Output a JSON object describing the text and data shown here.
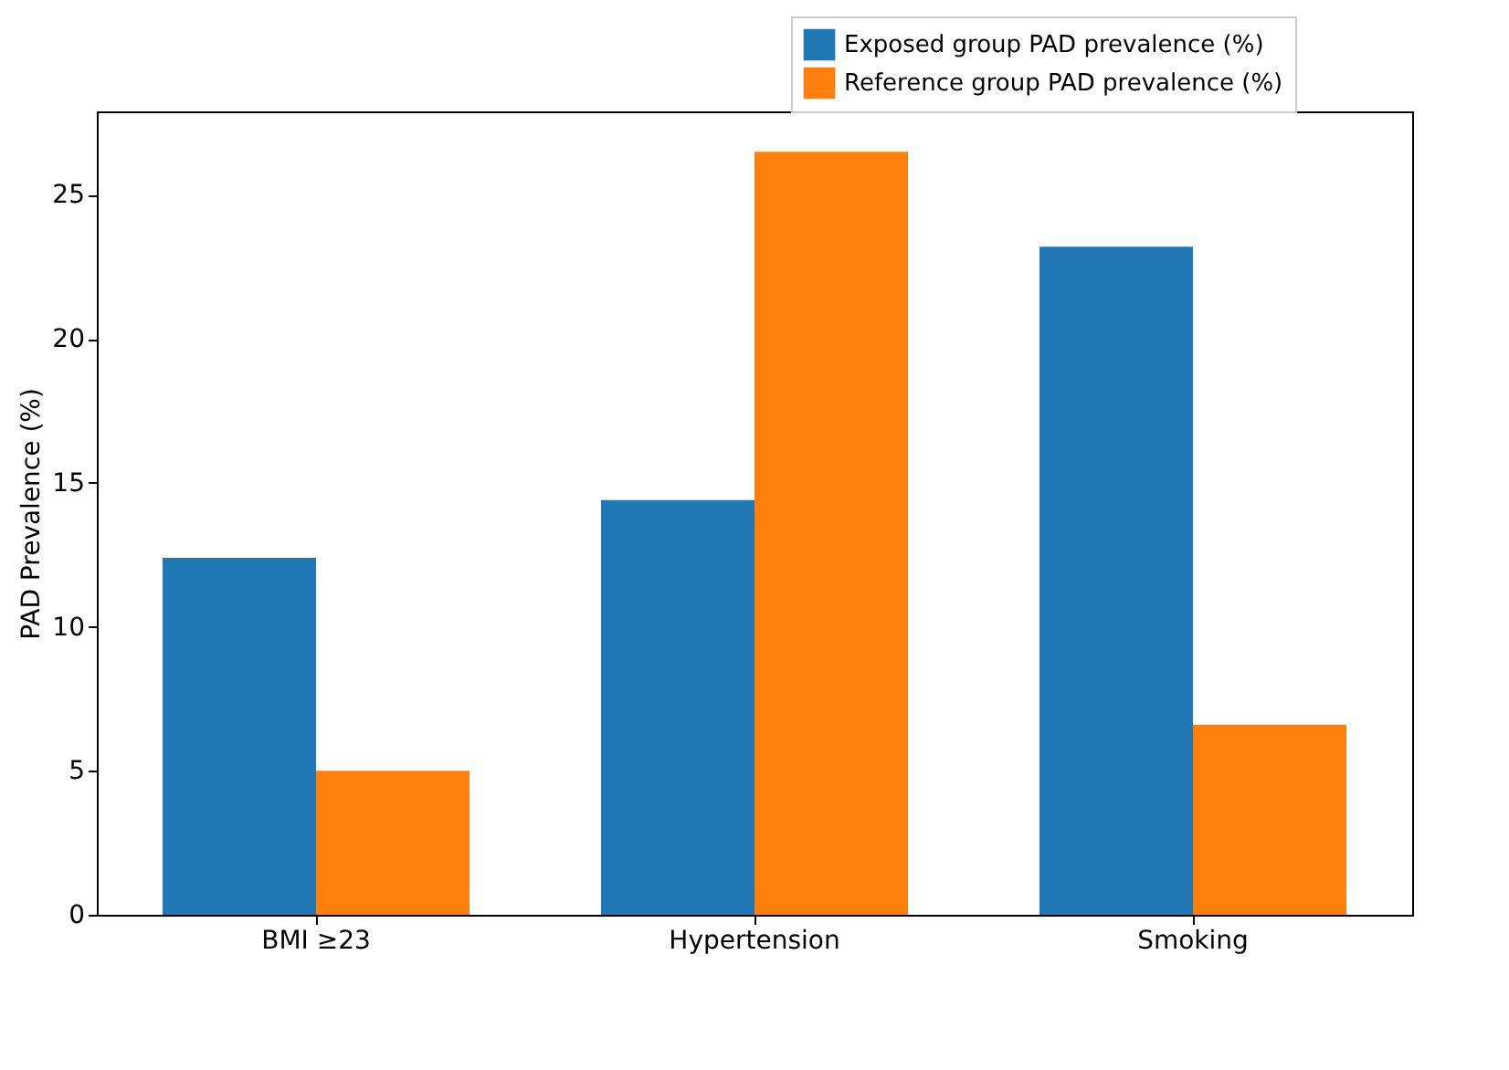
{
  "chart_data": {
    "type": "bar",
    "ylabel": "PAD Prevalence (%)",
    "categories": [
      "BMI ≥23",
      "Hypertension",
      "Smoking"
    ],
    "series": [
      {
        "name": "Exposed group PAD prevalence (%)",
        "color": "#1f77b4",
        "values": [
          12.4,
          14.4,
          23.2
        ]
      },
      {
        "name": "Reference group PAD prevalence (%)",
        "color": "#ff7f0e",
        "values": [
          5.0,
          26.5,
          6.6
        ]
      }
    ],
    "ylim": [
      0,
      27.9
    ],
    "yticks": [
      0,
      5,
      10,
      15,
      20,
      25
    ],
    "grid": false,
    "legend": "top right"
  }
}
